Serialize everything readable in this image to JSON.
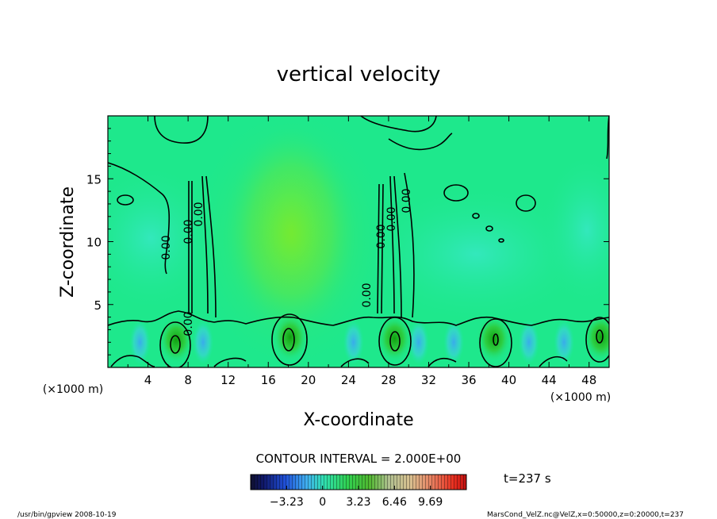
{
  "chart_data": {
    "type": "heatmap",
    "title": "vertical velocity",
    "xlabel": "X-coordinate",
    "ylabel": "Z-coordinate",
    "xunit_left": "(×1000 m)",
    "xunit_right": "(×1000 m)",
    "xlim": [
      0,
      50
    ],
    "ylim": [
      0,
      20
    ],
    "x_ticks": [
      4,
      8,
      12,
      16,
      20,
      24,
      28,
      32,
      36,
      40,
      44,
      48
    ],
    "y_ticks": [
      5,
      10,
      15
    ],
    "contour_interval_text": "CONTOUR INTERVAL = 2.000E+00",
    "contour_labels": [
      "0.00",
      "0.00",
      "0.00",
      "0.00",
      "0.00",
      "0.00",
      "0.00",
      "0.00"
    ],
    "colorbar": {
      "tick_labels": [
        "−3.23",
        "0",
        "3.23",
        "6.46",
        "9.69"
      ],
      "tick_values": [
        -3.23,
        0,
        3.23,
        6.46,
        9.69
      ],
      "range": [
        -6.46,
        12.92
      ]
    },
    "time_label": "t=237 s",
    "updrafts": [
      {
        "x": 6.8,
        "z": 2.2
      },
      {
        "x": 18.2,
        "z": 2.4
      },
      {
        "x": 28.6,
        "z": 2.3
      },
      {
        "x": 38.5,
        "z": 2.3
      },
      {
        "x": 49.2,
        "z": 2.4
      }
    ],
    "downdrafts": [
      {
        "x": 3.2,
        "z": 2.0
      },
      {
        "x": 9.5,
        "z": 2.0
      },
      {
        "x": 24.5,
        "z": 2.0
      },
      {
        "x": 31.0,
        "z": 2.0
      },
      {
        "x": 34.5,
        "z": 2.0
      },
      {
        "x": 42.0,
        "z": 2.0
      },
      {
        "x": 45.5,
        "z": 2.0
      }
    ]
  },
  "footer": {
    "left": "/usr/bin/gpview  2008-10-19",
    "right": "MarsCond_VelZ.nc@VelZ,x=0:50000,z=0:20000,t=237"
  },
  "colors": {
    "background_field": "#1ee88c",
    "center_field": "#7df02a",
    "downdraft": "#4ab8f0",
    "updraft": "#18b418"
  }
}
